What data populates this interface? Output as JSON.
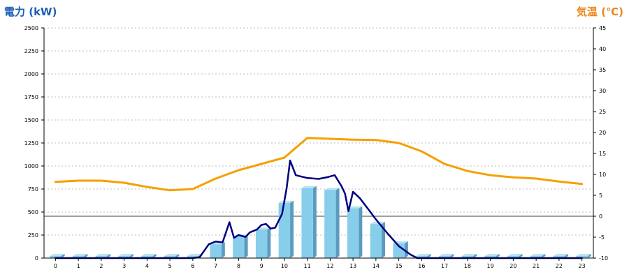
{
  "chart_data": {
    "type": "bar",
    "ylabel_left": "電力 (kW)",
    "ylabel_right": "気温 (℃)",
    "categories": [
      "0",
      "1",
      "2",
      "3",
      "4",
      "5",
      "6",
      "7",
      "8",
      "9",
      "10",
      "11",
      "12",
      "13",
      "14",
      "15",
      "16",
      "17",
      "18",
      "19",
      "20",
      "21",
      "22",
      "23"
    ],
    "ylim_left": [
      0,
      2500
    ],
    "yticks_left": [
      "0",
      "250",
      "500",
      "750",
      "1000",
      "1250",
      "1500",
      "1750",
      "2000",
      "2250",
      "2500"
    ],
    "ylim_right": [
      -10,
      45
    ],
    "yticks_right": [
      "-10",
      "-5",
      "0",
      "5",
      "10",
      "15",
      "20",
      "25",
      "30",
      "35",
      "40",
      "45"
    ],
    "grid": true,
    "series": [
      {
        "kind": "bar",
        "axis": "left",
        "values": [
          0,
          0,
          0,
          0,
          0,
          0,
          0,
          150,
          230,
          310,
          600,
          760,
          740,
          540,
          370,
          160,
          0,
          0,
          0,
          0,
          0,
          0,
          0,
          0
        ]
      },
      {
        "kind": "line",
        "axis": "left",
        "x": [
          0,
          1,
          2,
          3,
          4,
          5,
          6,
          6.3,
          6.7,
          7,
          7.3,
          7.6,
          7.8,
          8,
          8.3,
          8.5,
          8.8,
          9,
          9.2,
          9.4,
          9.6,
          9.9,
          10.1,
          10.25,
          10.5,
          11,
          11.5,
          11.9,
          12.2,
          12.5,
          12.65,
          12.8,
          13,
          13.3,
          13.7,
          14,
          14.5,
          15,
          15.5,
          15.8,
          16,
          17,
          18,
          19,
          20,
          21,
          22,
          23
        ],
        "values": [
          0,
          0,
          0,
          0,
          0,
          0,
          0,
          10,
          150,
          180,
          170,
          390,
          220,
          250,
          230,
          280,
          310,
          360,
          370,
          320,
          330,
          480,
          760,
          1060,
          900,
          870,
          860,
          880,
          900,
          780,
          700,
          510,
          720,
          650,
          520,
          420,
          270,
          130,
          40,
          0,
          0,
          0,
          0,
          0,
          0,
          0,
          0,
          0
        ]
      },
      {
        "kind": "line",
        "axis": "right",
        "values": [
          8.2,
          8.5,
          8.5,
          8.0,
          7.0,
          6.2,
          6.5,
          9.0,
          11.0,
          12.5,
          14.0,
          18.7,
          18.5,
          18.3,
          18.2,
          17.5,
          15.5,
          12.5,
          10.8,
          9.8,
          9.3,
          9.0,
          8.3,
          7.7
        ]
      }
    ],
    "colors": {
      "bars": "#87ceeb",
      "bar_side": "#5b9bbf",
      "power_line": "#000080",
      "temp_line": "#f5a000",
      "left_title": "#1a5fb4",
      "right_title": "#e8841a"
    }
  }
}
